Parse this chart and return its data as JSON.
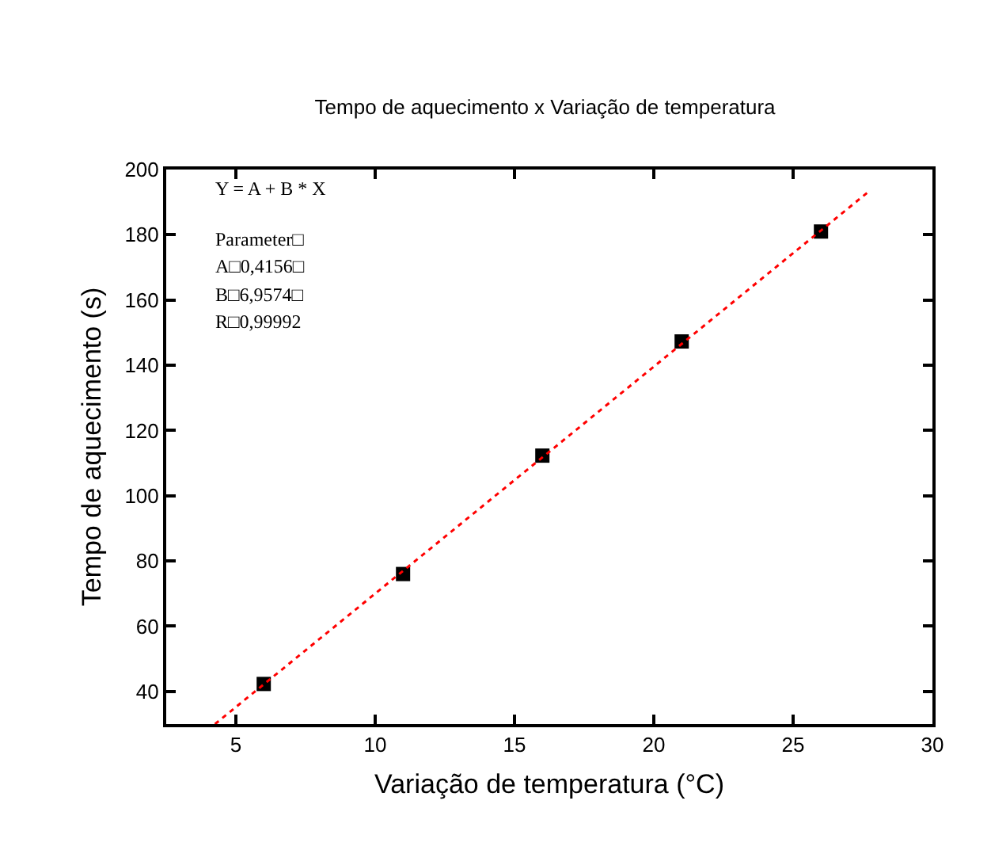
{
  "chart_data": {
    "type": "scatter",
    "title": "Tempo de aquecimento x Variação de temperatura",
    "xlabel": "Variação de temperatura (°C)",
    "ylabel": "Tempo de aquecimento (s)",
    "x": [
      6,
      11,
      16,
      21,
      26
    ],
    "series": [
      {
        "color": "#000000",
        "marker": "square",
        "values": [
          42.3,
          76.0,
          112.3,
          147.3,
          181.0
        ]
      },
      {
        "type": "line",
        "color": "#ff0000",
        "line_style": "dotted",
        "marker": "none",
        "x": [
          4.25,
          27.75
        ],
        "values": [
          30.0,
          193.5
        ]
      }
    ],
    "xlim": [
      2.5,
      30
    ],
    "xticks": [
      5,
      10,
      15,
      20,
      25,
      30
    ],
    "ylim": [
      30,
      200
    ],
    "yticks": [
      40,
      60,
      80,
      100,
      120,
      140,
      160,
      180,
      200
    ],
    "annotations": [
      "Y = A + B * X",
      "Parameter□",
      "A□0,4156□",
      "B□6,9574□",
      "R□0,99992"
    ]
  }
}
